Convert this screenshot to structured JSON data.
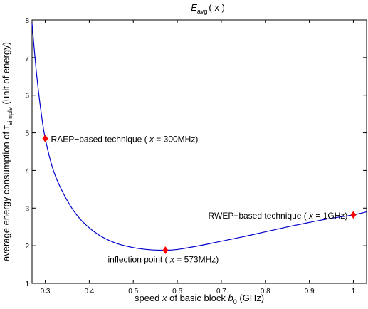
{
  "chart_data": {
    "type": "line",
    "title": {
      "main": "E",
      "sub": "avg",
      "rest": "( x )"
    },
    "xlabel": {
      "before_italic": "speed ",
      "italic": "x",
      "middle": " of basic block ",
      "base": "b",
      "sub": "0",
      "after": " (GHz)"
    },
    "ylabel": {
      "before": "average energy consumption of τ",
      "sub": "simple",
      "after": " (unit of energy)"
    },
    "xlim": [
      0.27,
      1.03
    ],
    "ylim": [
      1,
      8
    ],
    "xticks": [
      0.3,
      0.4,
      0.5,
      0.6,
      0.7,
      0.8,
      0.9,
      1
    ],
    "xtick_labels": [
      "0.3",
      "0.4",
      "0.5",
      "0.6",
      "0.7",
      "0.8",
      "0.9",
      "1"
    ],
    "yticks": [
      1,
      2,
      3,
      4,
      5,
      6,
      7,
      8
    ],
    "ytick_labels": [
      "1",
      "2",
      "3",
      "4",
      "5",
      "6",
      "7",
      "8"
    ],
    "grid": false,
    "series": [
      {
        "color": "#0000cc",
        "x": [
          0.27,
          0.28,
          0.29,
          0.3,
          0.32,
          0.35,
          0.38,
          0.42,
          0.46,
          0.5,
          0.54,
          0.573,
          0.6,
          0.65,
          0.7,
          0.75,
          0.8,
          0.85,
          0.9,
          0.95,
          1.0,
          1.03
        ],
        "y": [
          7.9,
          6.6,
          5.6,
          4.85,
          3.95,
          3.2,
          2.7,
          2.3,
          2.07,
          1.95,
          1.89,
          1.88,
          1.9,
          2.0,
          2.12,
          2.24,
          2.37,
          2.5,
          2.62,
          2.73,
          2.82,
          2.9
        ]
      }
    ],
    "markers": [
      {
        "x": 0.3,
        "y": 4.85,
        "color": "#ff0000",
        "label": {
          "before": "RAEP−based technique ( ",
          "italic": "x",
          "after": " = 300MHz)"
        }
      },
      {
        "x": 0.573,
        "y": 1.88,
        "color": "#ff0000",
        "label": {
          "before": "inflection point ( ",
          "italic": "x",
          "after": " = 573MHz)"
        }
      },
      {
        "x": 1.0,
        "y": 2.82,
        "color": "#ff0000",
        "label": {
          "before": "RWEP−based technique ( ",
          "italic": "x",
          "after": " = 1GHz)"
        }
      }
    ]
  }
}
